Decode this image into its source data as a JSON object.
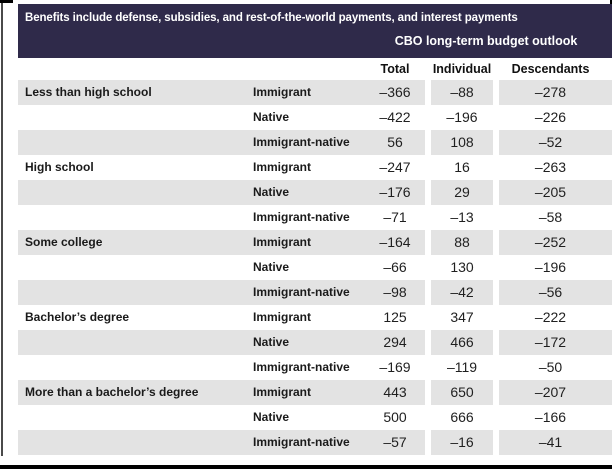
{
  "table": {
    "title": "Benefits include defense, subsidies, and rest-of-the-world payments, and interest payments",
    "subtitle": "CBO long-term budget outlook",
    "columns": [
      "Total",
      "Individual",
      "Descendants"
    ],
    "colors": {
      "header_bg": "#2f2a4a",
      "header_text": "#ffffff",
      "row_shade": "#e3e3e3",
      "body_text": "#1f1f1f"
    },
    "groups": [
      {
        "education": "Less than high school",
        "rows": [
          {
            "type": "Immigrant",
            "total": "–366",
            "individual": "–88",
            "descendants": "–278"
          },
          {
            "type": "Native",
            "total": "–422",
            "individual": "–196",
            "descendants": "–226"
          },
          {
            "type": "Immigrant-native",
            "total": "56",
            "individual": "108",
            "descendants": "–52"
          }
        ]
      },
      {
        "education": "High school",
        "rows": [
          {
            "type": "Immigrant",
            "total": "–247",
            "individual": "16",
            "descendants": "–263"
          },
          {
            "type": "Native",
            "total": "–176",
            "individual": "29",
            "descendants": "–205"
          },
          {
            "type": "Immigrant-native",
            "total": "–71",
            "individual": "–13",
            "descendants": "–58"
          }
        ]
      },
      {
        "education": "Some college",
        "rows": [
          {
            "type": "Immigrant",
            "total": "–164",
            "individual": "88",
            "descendants": "–252"
          },
          {
            "type": "Native",
            "total": "–66",
            "individual": "130",
            "descendants": "–196"
          },
          {
            "type": "Immigrant-native",
            "total": "–98",
            "individual": "–42",
            "descendants": "–56"
          }
        ]
      },
      {
        "education": "Bachelor’s degree",
        "rows": [
          {
            "type": "Immigrant",
            "total": "125",
            "individual": "347",
            "descendants": "–222"
          },
          {
            "type": "Native",
            "total": "294",
            "individual": "466",
            "descendants": "–172"
          },
          {
            "type": "Immigrant-native",
            "total": "–169",
            "individual": "–119",
            "descendants": "–50"
          }
        ]
      },
      {
        "education": "More than a bachelor’s degree",
        "rows": [
          {
            "type": "Immigrant",
            "total": "443",
            "individual": "650",
            "descendants": "–207"
          },
          {
            "type": "Native",
            "total": "500",
            "individual": "666",
            "descendants": "–166"
          },
          {
            "type": "Immigrant-native",
            "total": "–57",
            "individual": "–16",
            "descendants": "–41"
          }
        ]
      }
    ]
  }
}
